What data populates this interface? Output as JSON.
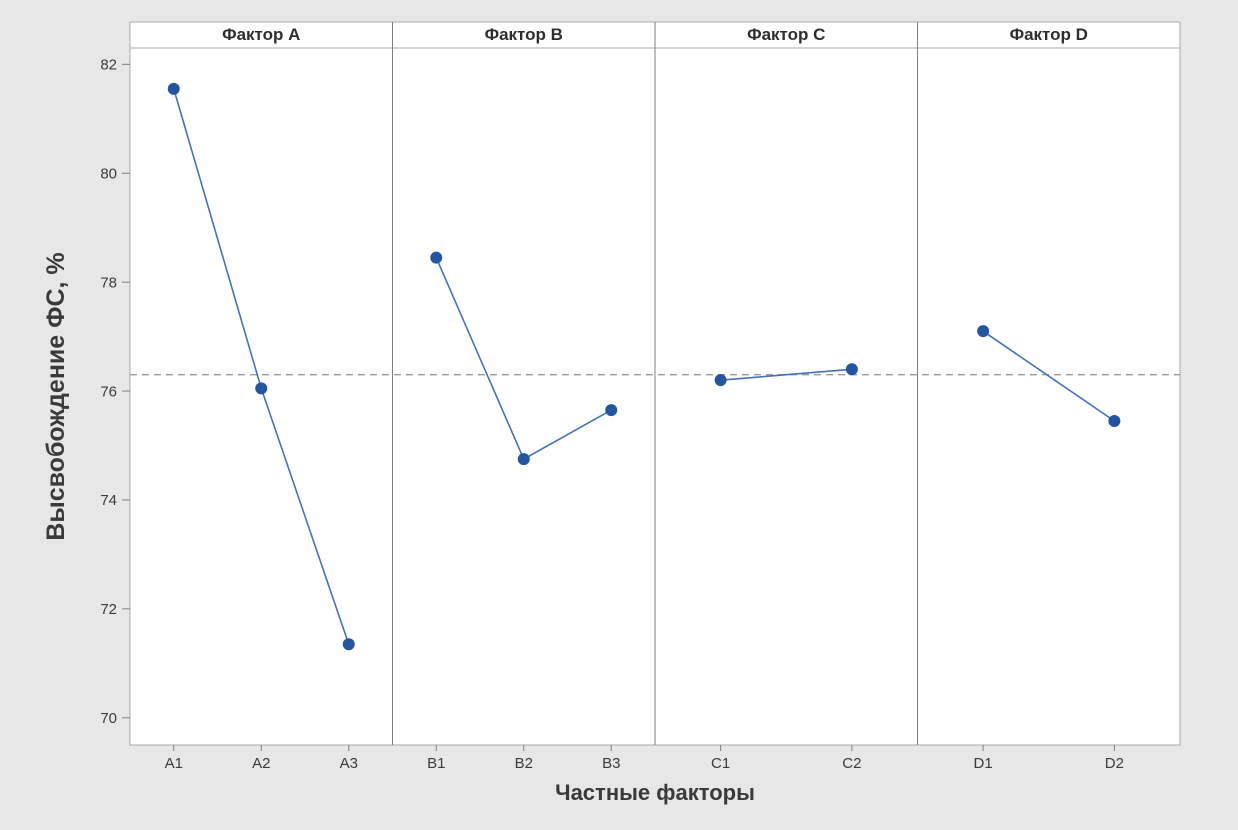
{
  "chart_data": {
    "type": "line",
    "title": "",
    "xlabel": "Частные факторы",
    "ylabel": "Высвобождение ФС, %",
    "ylim": [
      69.5,
      82.3
    ],
    "yticks": [
      70,
      72,
      74,
      76,
      78,
      80,
      82
    ],
    "reference_line": 76.3,
    "grid": "off",
    "legend": "none",
    "panels": [
      {
        "label": "Фактор A",
        "categories": [
          "A1",
          "A2",
          "A3"
        ],
        "values": [
          81.55,
          76.05,
          71.35
        ]
      },
      {
        "label": "Фактор B",
        "categories": [
          "B1",
          "B2",
          "B3"
        ],
        "values": [
          78.45,
          74.75,
          75.65
        ]
      },
      {
        "label": "Фактор C",
        "categories": [
          "C1",
          "C2"
        ],
        "values": [
          76.2,
          76.4
        ]
      },
      {
        "label": "Фактор D",
        "categories": [
          "D1",
          "D2"
        ],
        "values": [
          77.1,
          75.45
        ]
      }
    ],
    "colors": {
      "figure_background": "#e7e7e7",
      "panel_background": "#ffffff",
      "line": "#4472b8",
      "marker": "#2456a0",
      "reference_line": "#9b9b9b",
      "border": "#a9a9a9",
      "divider": "#7f7f7f",
      "text": "#3b3b3b"
    }
  }
}
